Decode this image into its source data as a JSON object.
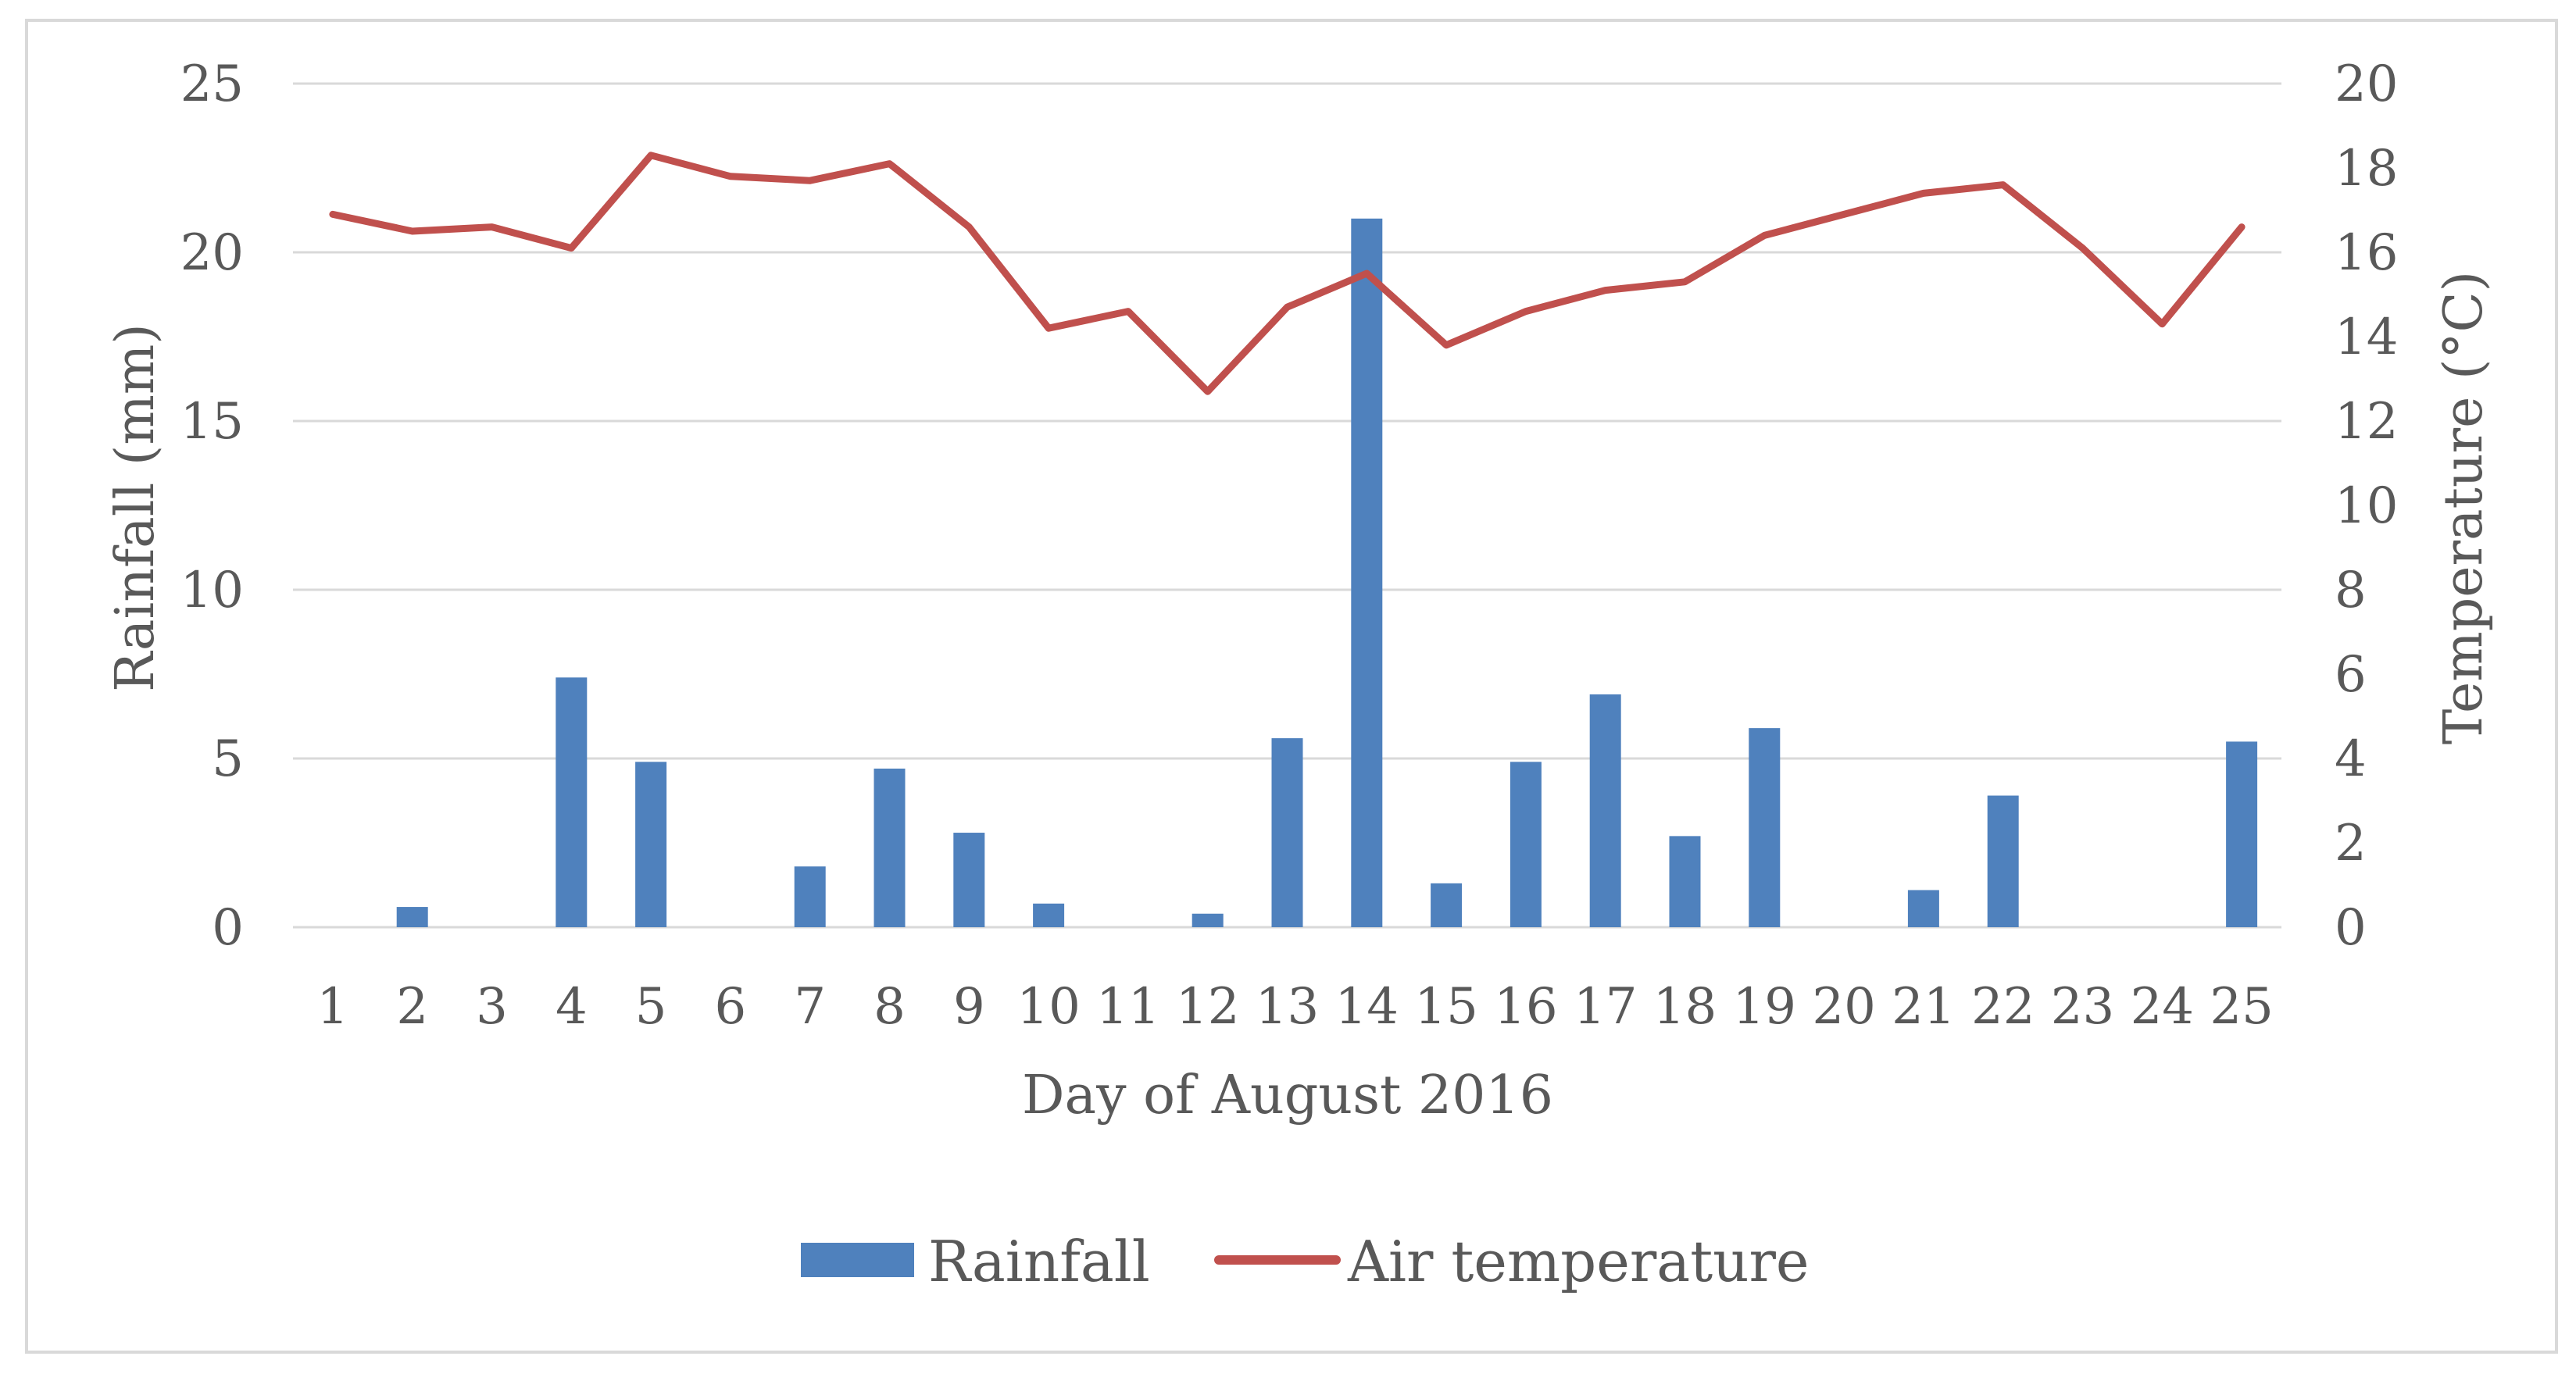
{
  "chart_data": {
    "type": "bar+line",
    "title": "",
    "xlabel": "Day of August 2016",
    "ylabel": "Rainfall (mm)",
    "y2label": "Temperature (°C)",
    "categories": [
      "1",
      "2",
      "3",
      "4",
      "5",
      "6",
      "7",
      "8",
      "9",
      "10",
      "11",
      "12",
      "13",
      "14",
      "15",
      "16",
      "17",
      "18",
      "19",
      "20",
      "21",
      "22",
      "23",
      "24",
      "25"
    ],
    "ylim": [
      0,
      25
    ],
    "yticks": [
      0,
      5,
      10,
      15,
      20,
      25
    ],
    "y2lim": [
      0,
      20
    ],
    "y2ticks": [
      0,
      2,
      4,
      6,
      8,
      10,
      12,
      14,
      16,
      18,
      20
    ],
    "grid": true,
    "legend_position": "bottom",
    "colors": {
      "rainfall": "#4f81bd",
      "temperature": "#c0504d"
    },
    "series": [
      {
        "name": "Rainfall",
        "type": "bar",
        "axis": "left",
        "values": [
          0,
          0.6,
          0,
          7.4,
          4.9,
          0,
          1.8,
          4.7,
          2.8,
          0.7,
          0,
          0.4,
          5.6,
          21.0,
          1.3,
          4.9,
          6.9,
          2.7,
          5.9,
          0,
          1.1,
          3.9,
          0,
          0,
          5.5
        ]
      },
      {
        "name": "Air temperature",
        "type": "line",
        "axis": "right",
        "values": [
          16.9,
          16.5,
          16.6,
          16.1,
          18.3,
          17.8,
          17.7,
          18.1,
          16.6,
          14.2,
          14.6,
          12.7,
          14.7,
          15.5,
          13.8,
          14.6,
          15.1,
          15.3,
          16.4,
          16.9,
          17.4,
          17.6,
          16.1,
          14.3,
          16.6
        ]
      }
    ]
  }
}
